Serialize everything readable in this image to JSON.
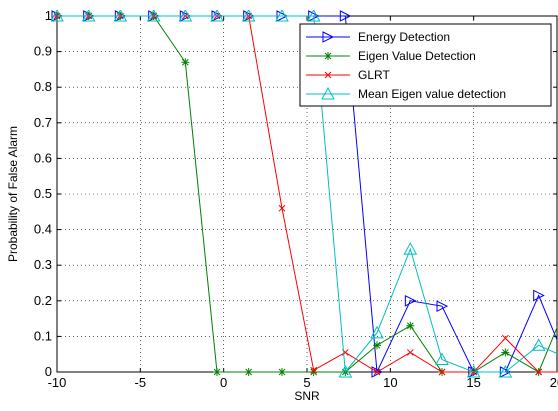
{
  "chart_data": {
    "type": "line",
    "title": "",
    "xlabel": "SNR",
    "ylabel": "Probability of False Alarm",
    "xlim": [
      -10,
      20
    ],
    "ylim": [
      0,
      1
    ],
    "x_ticks": [
      -10,
      -5,
      0,
      5,
      10,
      15,
      20
    ],
    "x_tick_labels": [
      "-10",
      "-5",
      "0",
      "5",
      "10",
      "15",
      "20"
    ],
    "y_ticks": [
      0,
      0.1,
      0.2,
      0.3,
      0.4,
      0.5,
      0.6,
      0.7,
      0.8,
      0.9,
      1
    ],
    "y_tick_labels": [
      "0",
      "0.1",
      "0.2",
      "0.3",
      "0.4",
      "0.5",
      "0.6",
      "0.7",
      "0.8",
      "0.9",
      "1"
    ],
    "grid": "dotted",
    "legend_position": "top-right",
    "series": [
      {
        "name": "Energy Detection",
        "color": "#0000ff",
        "marker": "triangle-right",
        "x": [
          -10,
          -8.1,
          -6.2,
          -4.2,
          -2.3,
          -0.4,
          1.5,
          3.5,
          5.4,
          7.3,
          9.2,
          11.2,
          13.1,
          15,
          16.9,
          18.9,
          20.8
        ],
        "y": [
          1,
          1,
          1,
          1,
          1,
          1,
          1,
          1,
          1,
          1,
          0,
          0.2,
          0.185,
          0,
          0,
          0.215,
          0
        ]
      },
      {
        "name": "Eigen Value Detection",
        "color": "#008000",
        "marker": "star",
        "x": [
          -10,
          -8.1,
          -6.2,
          -4.2,
          -2.3,
          -0.4,
          1.5,
          3.5,
          5.4,
          7.3,
          9.2,
          11.2,
          13.1,
          15,
          16.9,
          18.9,
          20.8
        ],
        "y": [
          1,
          1,
          1,
          1,
          0.87,
          0,
          0,
          0,
          0,
          0,
          0.075,
          0.13,
          0,
          0,
          0.055,
          0,
          0.215
        ]
      },
      {
        "name": "GLRT",
        "color": "#ff0000",
        "marker": "x",
        "x": [
          -10,
          -8.1,
          -6.2,
          -4.2,
          -2.3,
          -0.4,
          1.5,
          3.5,
          5.4,
          7.3,
          9.2,
          11.2,
          13.1,
          15,
          16.9,
          18.9,
          20.8
        ],
        "y": [
          1,
          1,
          1,
          1,
          1,
          1,
          1,
          0.46,
          0.005,
          0.055,
          0,
          0.055,
          0,
          0,
          0.095,
          0,
          0
        ]
      },
      {
        "name": "Mean Eigen value detection",
        "color": "#00bfbf",
        "marker": "triangle-up",
        "x": [
          -10,
          -8.1,
          -6.2,
          -4.2,
          -2.3,
          -0.4,
          1.5,
          3.5,
          5.4,
          7.3,
          9.2,
          11.2,
          13.1,
          15,
          16.9,
          18.9,
          20.8
        ],
        "y": [
          1,
          1,
          1,
          1,
          1,
          1,
          1,
          1,
          1,
          0,
          0.11,
          0.345,
          0.035,
          0,
          0,
          0.075,
          0.035
        ]
      }
    ]
  }
}
